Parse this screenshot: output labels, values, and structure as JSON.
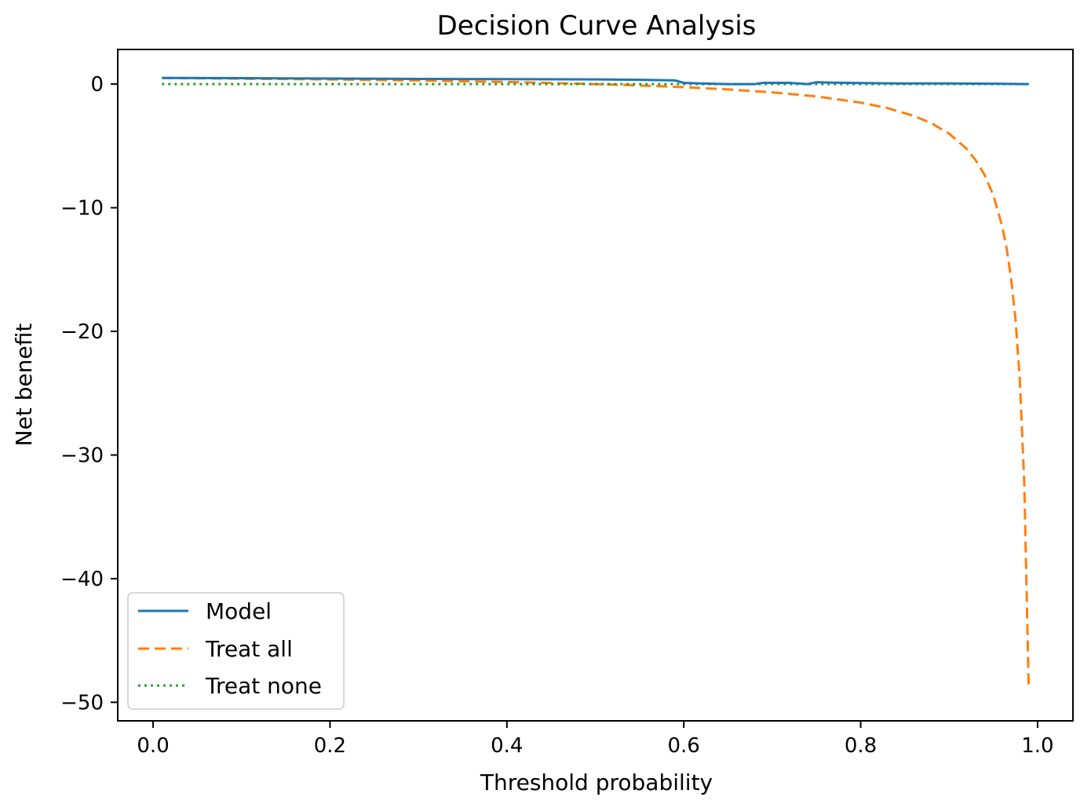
{
  "chart_data": {
    "type": "line",
    "title": "Decision Curve Analysis",
    "xlabel": "Threshold probability",
    "ylabel": "Net benefit",
    "xlim": [
      -0.04,
      1.04
    ],
    "ylim": [
      -51.5,
      2.8
    ],
    "x_ticks": [
      0.0,
      0.2,
      0.4,
      0.6,
      0.8,
      1.0
    ],
    "x_tick_labels": [
      "0.0",
      "0.2",
      "0.4",
      "0.6",
      "0.8",
      "1.0"
    ],
    "y_ticks": [
      0,
      -10,
      -20,
      -30,
      -40,
      -50
    ],
    "y_tick_labels": [
      "0",
      "−10",
      "−20",
      "−30",
      "−40",
      "−50"
    ],
    "legend_position": "lower-left",
    "series": [
      {
        "name": "Model",
        "color": "#1f77b4",
        "style": "solid",
        "x": [
          0.01,
          0.1,
          0.2,
          0.3,
          0.4,
          0.5,
          0.55,
          0.59,
          0.6,
          0.62,
          0.65,
          0.68,
          0.69,
          0.72,
          0.74,
          0.75,
          0.77,
          0.8,
          0.85,
          0.9,
          0.95,
          0.99
        ],
        "y": [
          0.5,
          0.48,
          0.45,
          0.42,
          0.4,
          0.38,
          0.35,
          0.3,
          0.1,
          0.05,
          0.0,
          0.0,
          0.1,
          0.1,
          0.0,
          0.15,
          0.12,
          0.08,
          0.05,
          0.05,
          0.03,
          0.0
        ]
      },
      {
        "name": "Treat all",
        "color": "#ff7f0e",
        "style": "dashed",
        "x": [
          0.01,
          0.05,
          0.1,
          0.15,
          0.2,
          0.25,
          0.3,
          0.35,
          0.4,
          0.45,
          0.5,
          0.55,
          0.6,
          0.65,
          0.7,
          0.75,
          0.8,
          0.83,
          0.86,
          0.88,
          0.9,
          0.92,
          0.93,
          0.94,
          0.95,
          0.96,
          0.965,
          0.97,
          0.975,
          0.98,
          0.985,
          0.99
        ],
        "y": [
          0.49,
          0.47,
          0.44,
          0.41,
          0.38,
          0.33,
          0.29,
          0.23,
          0.17,
          0.09,
          0.0,
          -0.11,
          -0.25,
          -0.43,
          -0.67,
          -1.0,
          -1.5,
          -1.94,
          -2.57,
          -3.17,
          -4.0,
          -5.25,
          -6.14,
          -7.33,
          -9.0,
          -11.5,
          -13.29,
          -15.67,
          -19.0,
          -24.0,
          -32.33,
          -49.0
        ]
      },
      {
        "name": "Treat none",
        "color": "#2ca02c",
        "style": "dotted",
        "x": [
          0.01,
          0.99
        ],
        "y": [
          0.0,
          0.0
        ]
      }
    ]
  }
}
